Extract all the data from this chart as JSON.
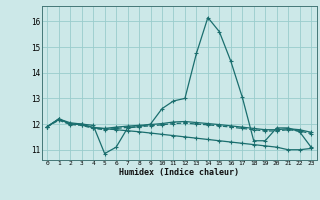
{
  "xlabel": "Humidex (Indice chaleur)",
  "background_color": "#cce8e8",
  "grid_color": "#99cccc",
  "line_color": "#1a6e6e",
  "xlim": [
    -0.5,
    23.5
  ],
  "ylim": [
    10.6,
    16.6
  ],
  "yticks": [
    11,
    12,
    13,
    14,
    15,
    16
  ],
  "xticks": [
    0,
    1,
    2,
    3,
    4,
    5,
    6,
    7,
    8,
    9,
    10,
    11,
    12,
    13,
    14,
    15,
    16,
    17,
    18,
    19,
    20,
    21,
    22,
    23
  ],
  "series": [
    {
      "x": [
        0,
        1,
        2,
        3,
        4,
        5,
        6,
        7,
        8,
        9,
        10,
        11,
        12,
        13,
        14,
        15,
        16,
        17,
        18,
        19,
        20,
        21,
        22,
        23
      ],
      "y": [
        11.9,
        12.2,
        12.0,
        12.0,
        11.95,
        10.85,
        11.1,
        11.85,
        11.9,
        12.0,
        12.6,
        12.9,
        13.0,
        14.75,
        16.15,
        15.6,
        14.45,
        13.05,
        11.35,
        11.35,
        11.85,
        11.85,
        11.7,
        11.1
      ],
      "style": "-",
      "lw": 0.9
    },
    {
      "x": [
        0,
        1,
        2,
        3,
        4,
        5,
        6,
        7,
        8,
        9,
        10,
        11,
        12,
        13,
        14,
        15,
        16,
        17,
        18,
        19,
        20,
        21,
        22,
        23
      ],
      "y": [
        11.9,
        12.2,
        12.05,
        12.0,
        11.85,
        11.82,
        11.78,
        11.74,
        11.7,
        11.65,
        11.6,
        11.55,
        11.5,
        11.45,
        11.4,
        11.35,
        11.3,
        11.25,
        11.2,
        11.15,
        11.1,
        11.0,
        11.0,
        11.05
      ],
      "style": "-",
      "lw": 0.9
    },
    {
      "x": [
        0,
        1,
        2,
        3,
        4,
        5,
        6,
        7,
        8,
        9,
        10,
        11,
        12,
        13,
        14,
        15,
        16,
        17,
        18,
        19,
        20,
        21,
        22,
        23
      ],
      "y": [
        11.9,
        12.2,
        12.0,
        11.98,
        11.87,
        11.83,
        11.88,
        11.92,
        11.95,
        11.98,
        12.02,
        12.08,
        12.1,
        12.06,
        12.02,
        11.98,
        11.93,
        11.88,
        11.83,
        11.78,
        11.78,
        11.82,
        11.78,
        11.68
      ],
      "style": "-",
      "lw": 0.9
    },
    {
      "x": [
        0,
        1,
        2,
        3,
        4,
        5,
        6,
        7,
        8,
        9,
        10,
        11,
        12,
        13,
        14,
        15,
        16,
        17,
        18,
        19,
        20,
        21,
        22,
        23
      ],
      "y": [
        11.9,
        12.15,
        11.98,
        11.95,
        11.83,
        11.78,
        11.83,
        11.87,
        11.9,
        11.93,
        11.97,
        12.02,
        12.04,
        12.0,
        11.97,
        11.93,
        11.88,
        11.83,
        11.78,
        11.73,
        11.73,
        11.78,
        11.73,
        11.63
      ],
      "style": "--",
      "lw": 0.9
    }
  ]
}
